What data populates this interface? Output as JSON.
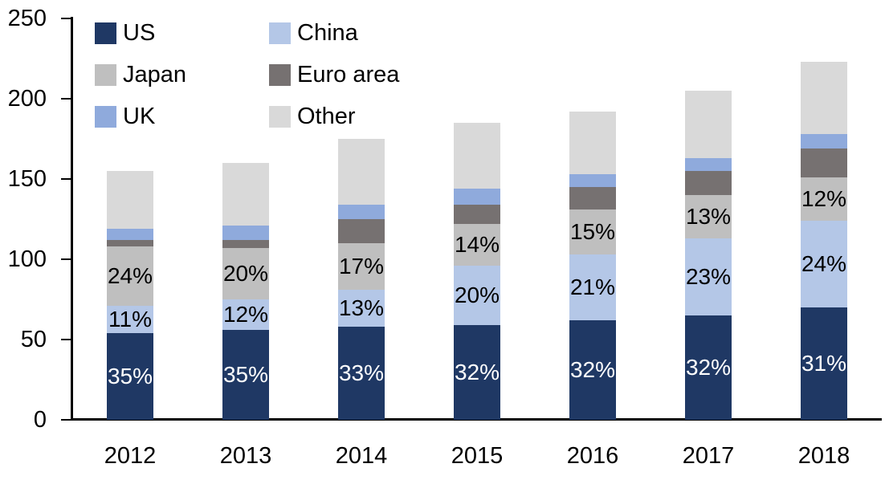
{
  "chart_data": {
    "type": "bar",
    "stacked": true,
    "title": "",
    "xlabel": "",
    "ylabel": "",
    "categories": [
      "2012",
      "2013",
      "2014",
      "2015",
      "2016",
      "2017",
      "2018"
    ],
    "series": [
      {
        "name": "US",
        "color": "#1f3864",
        "values": [
          54,
          56,
          58,
          59,
          62,
          65,
          70
        ],
        "labels": [
          "35%",
          "35%",
          "33%",
          "32%",
          "32%",
          "32%",
          "31%"
        ],
        "label_color": "#ffffff"
      },
      {
        "name": "China",
        "color": "#b4c7e7",
        "values": [
          17,
          19,
          23,
          37,
          41,
          48,
          54
        ],
        "labels": [
          "11%",
          "12%",
          "13%",
          "20%",
          "21%",
          "23%",
          "24%"
        ],
        "label_color": "#000000"
      },
      {
        "name": "Japan",
        "color": "#bfbfbf",
        "values": [
          37,
          32,
          29,
          26,
          28,
          27,
          27
        ],
        "labels": [
          "24%",
          "20%",
          "17%",
          "14%",
          "15%",
          "13%",
          "12%"
        ],
        "label_color": "#000000"
      },
      {
        "name": "Euro area",
        "color": "#767171",
        "values": [
          4,
          5,
          15,
          12,
          14,
          15,
          18
        ],
        "labels": null,
        "label_color": null
      },
      {
        "name": "UK",
        "color": "#8faadc",
        "values": [
          7,
          9,
          9,
          10,
          8,
          8,
          9
        ],
        "labels": null,
        "label_color": null
      },
      {
        "name": "Other",
        "color": "#d9d9d9",
        "values": [
          36,
          39,
          41,
          41,
          39,
          42,
          45
        ],
        "labels": null,
        "label_color": null
      }
    ],
    "totals": [
      155,
      160,
      175,
      185,
      192,
      205,
      223
    ],
    "ylim": [
      0,
      250
    ],
    "yticks": [
      0,
      50,
      100,
      150,
      200,
      250
    ],
    "grid": false,
    "legend_position": "top-left",
    "legend_layout": "two-column"
  }
}
